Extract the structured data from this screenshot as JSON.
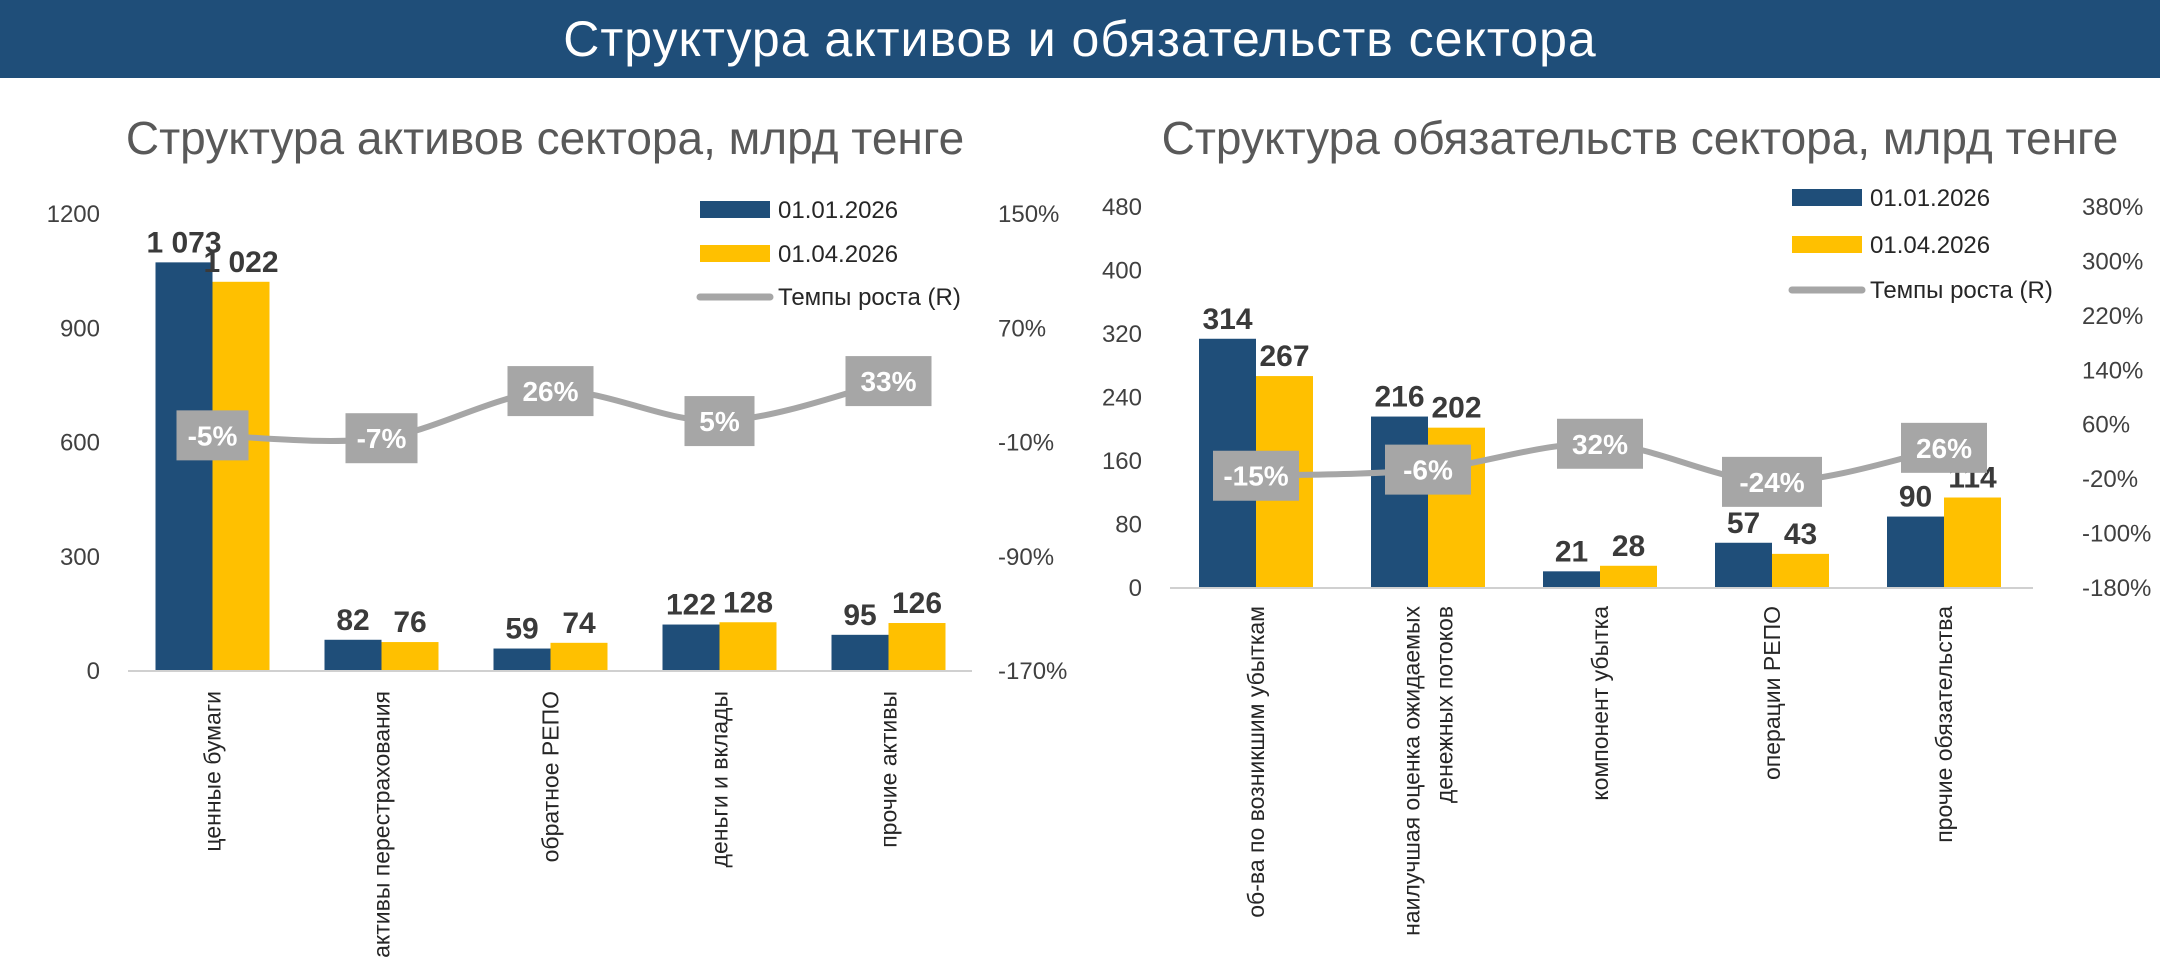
{
  "page": {
    "title": "Структура активов и обязательств сектора"
  },
  "colors": {
    "banner": "#1f4e79",
    "series1": "#1f4e79",
    "series2": "#ffc000",
    "growth": "#a6a6a6",
    "axis": "#d0d0d0"
  },
  "chart_data": [
    {
      "type": "bar",
      "title": "Структура активов сектора, млрд тенге",
      "categories": [
        "ценные бумаги",
        "активы перестрахования",
        "обратное РЕПО",
        "деньги и вклады",
        "прочие активы"
      ],
      "series": [
        {
          "name": "01.01.2026",
          "values": [
            1073,
            82,
            59,
            122,
            95
          ],
          "labels": [
            "1 073",
            "82",
            "59",
            "122",
            "95"
          ]
        },
        {
          "name": "01.04.2026",
          "values": [
            1022,
            76,
            74,
            128,
            126
          ],
          "labels": [
            "1 022",
            "76",
            "74",
            "128",
            "126"
          ]
        },
        {
          "name": "Темпы роста (R)",
          "type": "line",
          "axis": "right",
          "values": [
            -5,
            -7,
            26,
            5,
            33
          ],
          "labels": [
            "-5%",
            "-7%",
            "26%",
            "5%",
            "33%"
          ]
        }
      ],
      "ylim": [
        0,
        1200
      ],
      "yticks": [
        "0",
        "300",
        "600",
        "900",
        "1200"
      ],
      "y2lim": [
        -170,
        150
      ],
      "y2ticks": [
        "-170%",
        "-90%",
        "-10%",
        "70%",
        "150%"
      ],
      "legend_position": "top-right"
    },
    {
      "type": "bar",
      "title": "Структура обязательств сектора, млрд тенге",
      "categories": [
        "об-ва по возникшим убыткам",
        "наилучшая оценка ожидаемых денежных потоков",
        "компонент убытка",
        "операции РЕПО",
        "прочие обязательства"
      ],
      "series": [
        {
          "name": "01.01.2026",
          "values": [
            314,
            216,
            21,
            57,
            90
          ],
          "labels": [
            "314",
            "216",
            "21",
            "57",
            "90"
          ]
        },
        {
          "name": "01.04.2026",
          "values": [
            267,
            202,
            28,
            43,
            114
          ],
          "labels": [
            "267",
            "202",
            "28",
            "43",
            "114"
          ]
        },
        {
          "name": "Темпы роста (R)",
          "type": "line",
          "axis": "right",
          "values": [
            -15,
            -6,
            32,
            -24,
            26
          ],
          "labels": [
            "-15%",
            "-6%",
            "32%",
            "-24%",
            "26%"
          ]
        }
      ],
      "ylim": [
        0,
        480
      ],
      "yticks": [
        "0",
        "80",
        "160",
        "240",
        "320",
        "400",
        "480"
      ],
      "y2lim": [
        -180,
        380
      ],
      "y2ticks": [
        "-180%",
        "-100%",
        "-20%",
        "60%",
        "140%",
        "220%",
        "300%",
        "380%"
      ],
      "legend_position": "top-right"
    }
  ]
}
